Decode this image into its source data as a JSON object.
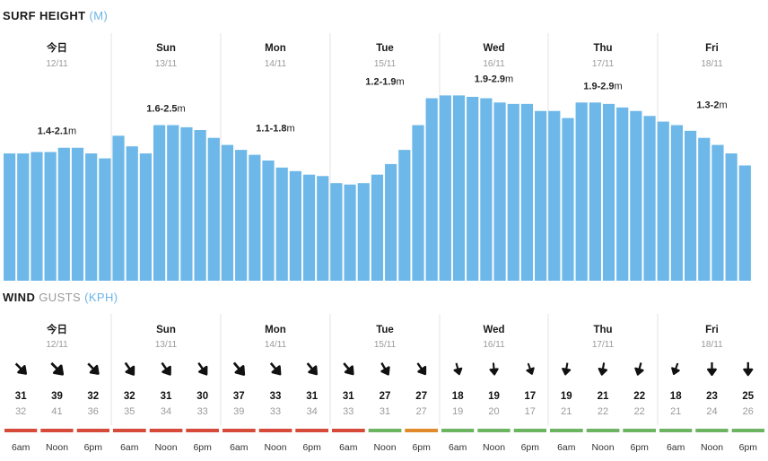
{
  "surf_title": {
    "main": "SURF HEIGHT",
    "unit": "(M)"
  },
  "wind_title": {
    "main": "WIND",
    "sub": "GUSTS",
    "unit": "(KPH)"
  },
  "days": [
    {
      "name": "今日",
      "date": "12/11",
      "surf_range": "1.4-2.1",
      "surf_unit": "m"
    },
    {
      "name": "Sun",
      "date": "13/11",
      "surf_range": "1.6-2.5",
      "surf_unit": "m"
    },
    {
      "name": "Mon",
      "date": "14/11",
      "surf_range": "1.1-1.8",
      "surf_unit": "m"
    },
    {
      "name": "Tue",
      "date": "15/11",
      "surf_range": "1.2-1.9",
      "surf_unit": "m"
    },
    {
      "name": "Wed",
      "date": "16/11",
      "surf_range": "1.9-2.9",
      "surf_unit": "m"
    },
    {
      "name": "Thu",
      "date": "17/11",
      "surf_range": "1.9-2.9",
      "surf_unit": "m"
    },
    {
      "name": "Fri",
      "date": "18/11",
      "surf_range": "1.3-2",
      "surf_unit": "m"
    }
  ],
  "chart_data": [
    {
      "type": "bar",
      "title": "SURF HEIGHT (M)",
      "ylim": [
        0,
        3.5
      ],
      "values": [
        1.8,
        1.8,
        1.82,
        1.82,
        1.88,
        1.88,
        1.8,
        1.73,
        2.05,
        1.9,
        1.8,
        2.2,
        2.2,
        2.17,
        2.13,
        2.02,
        1.92,
        1.85,
        1.78,
        1.7,
        1.6,
        1.55,
        1.5,
        1.48,
        1.38,
        1.36,
        1.38,
        1.5,
        1.65,
        1.85,
        2.2,
        2.58,
        2.62,
        2.62,
        2.6,
        2.58,
        2.52,
        2.5,
        2.5,
        2.4,
        2.4,
        2.3,
        2.52,
        2.52,
        2.5,
        2.45,
        2.4,
        2.33,
        2.25,
        2.2,
        2.12,
        2.02,
        1.92,
        1.8,
        1.63
      ]
    },
    {
      "type": "table",
      "title": "WIND GUSTS (KPH)",
      "times": [
        "6am",
        "Noon",
        "6pm"
      ],
      "rows": [
        {
          "speed": 31,
          "gust": 32,
          "rating": "poor",
          "dir": 225
        },
        {
          "speed": 39,
          "gust": 41,
          "rating": "poor",
          "dir": 225
        },
        {
          "speed": 32,
          "gust": 36,
          "rating": "poor",
          "dir": 225
        },
        {
          "speed": 32,
          "gust": 35,
          "rating": "poor",
          "dir": 235
        },
        {
          "speed": 31,
          "gust": 34,
          "rating": "poor",
          "dir": 235
        },
        {
          "speed": 30,
          "gust": 33,
          "rating": "poor",
          "dir": 235
        },
        {
          "speed": 37,
          "gust": 39,
          "rating": "poor",
          "dir": 230
        },
        {
          "speed": 33,
          "gust": 33,
          "rating": "poor",
          "dir": 230
        },
        {
          "speed": 31,
          "gust": 34,
          "rating": "poor",
          "dir": 230
        },
        {
          "speed": 31,
          "gust": 33,
          "rating": "poor",
          "dir": 230
        },
        {
          "speed": 27,
          "gust": 31,
          "rating": "good",
          "dir": 240
        },
        {
          "speed": 27,
          "gust": 27,
          "rating": "fair",
          "dir": 235
        },
        {
          "speed": 18,
          "gust": 19,
          "rating": "good",
          "dir": 255
        },
        {
          "speed": 19,
          "gust": 20,
          "rating": "good",
          "dir": 265
        },
        {
          "speed": 17,
          "gust": 17,
          "rating": "good",
          "dir": 250
        },
        {
          "speed": 19,
          "gust": 21,
          "rating": "good",
          "dir": 280
        },
        {
          "speed": 21,
          "gust": 22,
          "rating": "good",
          "dir": 280
        },
        {
          "speed": 22,
          "gust": 22,
          "rating": "good",
          "dir": 285
        },
        {
          "speed": 18,
          "gust": 21,
          "rating": "good",
          "dir": 290
        },
        {
          "speed": 23,
          "gust": 24,
          "rating": "good",
          "dir": 270
        },
        {
          "speed": 25,
          "gust": 26,
          "rating": "good",
          "dir": 270
        }
      ]
    }
  ],
  "colors": {
    "bar": "#6db8e8",
    "divider": "#e3e3e3",
    "poor": "#d64a3a",
    "fair": "#e08a2c",
    "good": "#6db462",
    "arrow": "#111111"
  }
}
